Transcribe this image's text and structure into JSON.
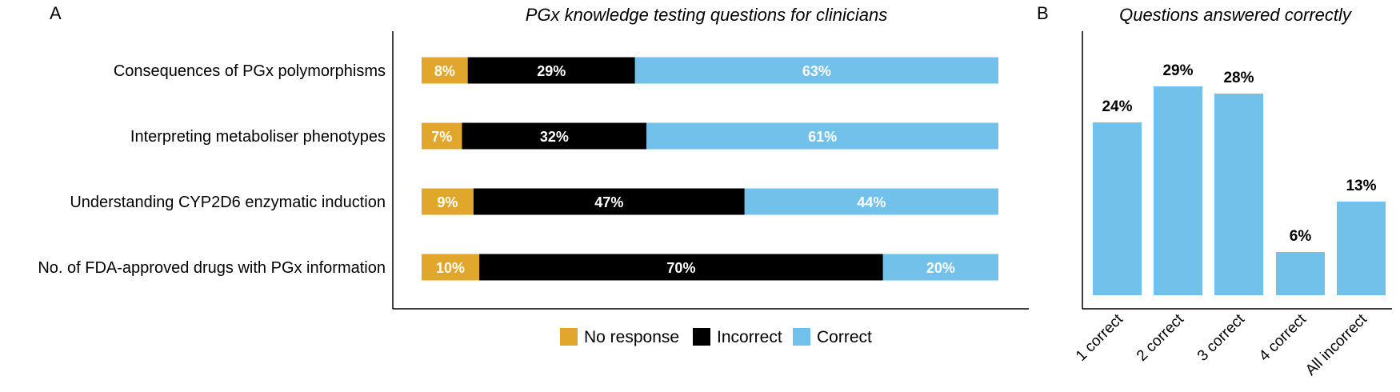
{
  "panels": {
    "a_letter": "A",
    "b_letter": "B"
  },
  "chart_data": [
    {
      "type": "bar",
      "orientation": "horizontal",
      "stacked": true,
      "percent_stacked": true,
      "title": "PGx knowledge testing questions for clinicians",
      "categories": [
        "Consequences of PGx polymorphisms",
        "Interpreting metaboliser phenotypes",
        "Understanding CYP2D6 enzymatic induction",
        "No. of FDA-approved drugs with PGx information"
      ],
      "series": [
        {
          "name": "No response",
          "color": "#E0A72C",
          "values": [
            8,
            7,
            9,
            10
          ],
          "labels": [
            "8%",
            "7%",
            "9%",
            "10%"
          ]
        },
        {
          "name": "Incorrect",
          "color": "#000000",
          "values": [
            29,
            32,
            47,
            70
          ],
          "labels": [
            "29%",
            "32%",
            "47%",
            "70%"
          ]
        },
        {
          "name": "Correct",
          "color": "#72C1EB",
          "values": [
            63,
            61,
            44,
            20
          ],
          "labels": [
            "63%",
            "61%",
            "44%",
            "20%"
          ]
        }
      ],
      "xlim": [
        0,
        100
      ],
      "grid": false,
      "legend_position": "bottom"
    },
    {
      "type": "bar",
      "title": "Questions answered correctly",
      "categories": [
        "1 correct",
        "2 correct",
        "3 correct",
        "4 correct",
        "All incorrect"
      ],
      "values": [
        24,
        29,
        28,
        6,
        13
      ],
      "labels": [
        "24%",
        "29%",
        "28%",
        "6%",
        "13%"
      ],
      "color": "#72C1EB",
      "ylim": [
        0,
        34
      ],
      "grid": false
    }
  ]
}
